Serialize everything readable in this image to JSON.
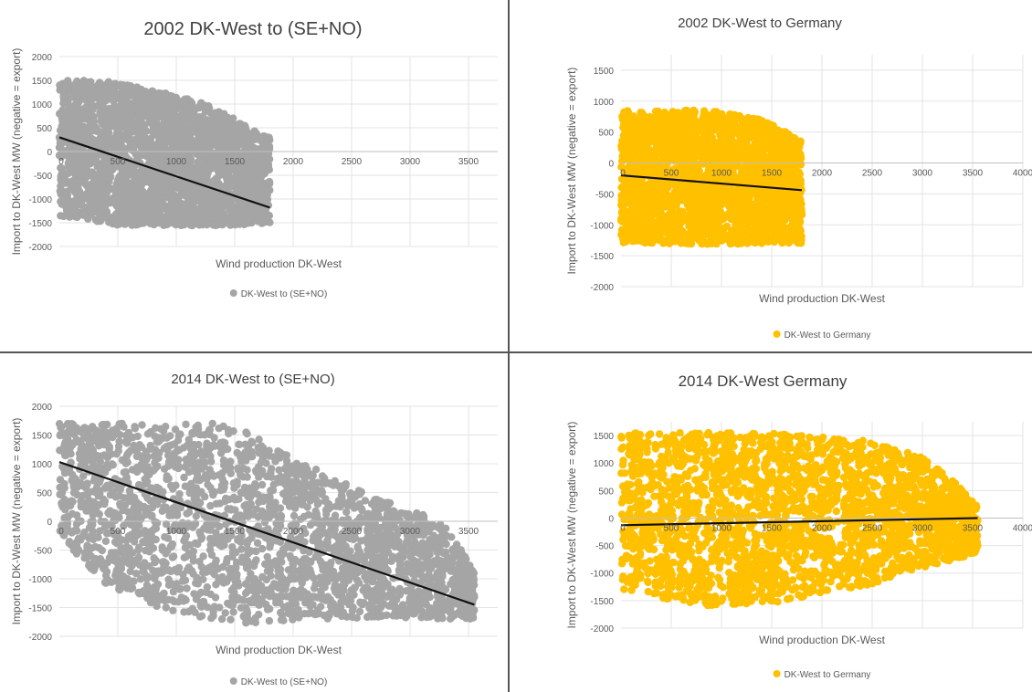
{
  "figure": {
    "divider_color": "#555555"
  },
  "chart_data": [
    {
      "type": "scatter",
      "title": "2002 DK-West to (SE+NO)",
      "xlabel": "Wind production DK-West",
      "ylabel": "Import to DK-West MW (negative = export)",
      "xlim": [
        0,
        3750
      ],
      "ylim": [
        -2000,
        2000
      ],
      "x_ticks": [
        0,
        500,
        1000,
        1500,
        2000,
        2500,
        3000,
        3500
      ],
      "y_ticks": [
        -2000,
        -1500,
        -1000,
        -500,
        0,
        500,
        1000,
        1500,
        2000
      ],
      "grid": true,
      "legend_position": "bottom",
      "marker_color": "#A5A5A5",
      "series": [
        {
          "name": "DK-West to (SE+NO)",
          "cloud": {
            "x_range": [
              0,
              1800
            ],
            "y_max_at_x": [
              [
                0,
                1520
              ],
              [
                400,
                1480
              ],
              [
                800,
                1300
              ],
              [
                1200,
                1050
              ],
              [
                1500,
                700
              ],
              [
                1650,
                450
              ],
              [
                1800,
                300
              ]
            ],
            "y_min_at_x": [
              [
                0,
                -1400
              ],
              [
                500,
                -1550
              ],
              [
                1000,
                -1560
              ],
              [
                1500,
                -1560
              ],
              [
                1800,
                -1500
              ]
            ]
          }
        }
      ],
      "trendline": {
        "x": [
          0,
          1800
        ],
        "y": [
          300,
          -1180
        ],
        "color": "#111111"
      }
    },
    {
      "type": "scatter",
      "title": "2002 DK-West to Germany",
      "xlabel": "Wind production DK-West",
      "ylabel": "Import to DK-West MW (negative = export)",
      "xlim": [
        0,
        4000
      ],
      "ylim": [
        -2000,
        1750
      ],
      "x_ticks": [
        0,
        500,
        1000,
        1500,
        2000,
        2500,
        3000,
        3500,
        4000
      ],
      "y_ticks": [
        -2000,
        -1500,
        -1000,
        -500,
        0,
        500,
        1000,
        1500
      ],
      "grid": true,
      "legend_position": "bottom",
      "marker_color": "#FFC000",
      "series": [
        {
          "name": "DK-West to Germany",
          "cloud": {
            "x_range": [
              0,
              1800
            ],
            "y_max_at_x": [
              [
                0,
                850
              ],
              [
                900,
                850
              ],
              [
                1400,
                700
              ],
              [
                1650,
                500
              ],
              [
                1800,
                350
              ]
            ],
            "y_min_at_x": [
              [
                0,
                -1300
              ],
              [
                800,
                -1320
              ],
              [
                1400,
                -1300
              ],
              [
                1800,
                -1300
              ]
            ]
          }
        }
      ],
      "trendline": {
        "x": [
          0,
          1800
        ],
        "y": [
          -200,
          -440
        ],
        "color": "#111111"
      }
    },
    {
      "type": "scatter",
      "title": "2014 DK-West to (SE+NO)",
      "xlabel": "Wind production DK-West",
      "ylabel": "Import to DK-West MW (negative = export)",
      "xlim": [
        0,
        3750
      ],
      "ylim": [
        -2000,
        2000
      ],
      "x_ticks": [
        0,
        500,
        1000,
        1500,
        2000,
        2500,
        3000,
        3500
      ],
      "y_ticks": [
        -2000,
        -1500,
        -1000,
        -500,
        0,
        500,
        1000,
        1500,
        2000
      ],
      "grid": true,
      "legend_position": "bottom",
      "marker_color": "#A5A5A5",
      "series": [
        {
          "name": "DK-West to (SE+NO)",
          "cloud": {
            "x_range": [
              0,
              3550
            ],
            "y_max_at_x": [
              [
                0,
                1700
              ],
              [
                1400,
                1700
              ],
              [
                1600,
                1550
              ],
              [
                2000,
                1100
              ],
              [
                2500,
                600
              ],
              [
                3000,
                200
              ],
              [
                3300,
                0
              ],
              [
                3550,
                -900
              ]
            ],
            "y_min_at_x": [
              [
                0,
                -300
              ],
              [
                400,
                -1100
              ],
              [
                900,
                -1550
              ],
              [
                1500,
                -1800
              ],
              [
                2100,
                -1700
              ],
              [
                3000,
                -1700
              ],
              [
                3550,
                -1700
              ]
            ]
          }
        }
      ],
      "trendline": {
        "x": [
          0,
          3550
        ],
        "y": [
          1030,
          -1450
        ],
        "color": "#111111"
      }
    },
    {
      "type": "scatter",
      "title": "2014 DK-West Germany",
      "xlabel": "Wind production DK-West",
      "ylabel": "Import to DK-West MW (negative = export)",
      "xlim": [
        0,
        4000
      ],
      "ylim": [
        -2000,
        1750
      ],
      "x_ticks": [
        0,
        500,
        1000,
        1500,
        2000,
        2500,
        3000,
        3500,
        4000
      ],
      "y_ticks": [
        -2000,
        -1500,
        -1000,
        -500,
        0,
        500,
        1000,
        1500
      ],
      "grid": true,
      "legend_position": "bottom",
      "marker_color": "#FFC000",
      "series": [
        {
          "name": "DK-West to Germany",
          "cloud": {
            "x_range": [
              0,
              3550
            ],
            "y_max_at_x": [
              [
                0,
                1550
              ],
              [
                1500,
                1550
              ],
              [
                2500,
                1400
              ],
              [
                3000,
                1100
              ],
              [
                3300,
                700
              ],
              [
                3550,
                200
              ]
            ],
            "y_min_at_x": [
              [
                0,
                -1300
              ],
              [
                800,
                -1600
              ],
              [
                1500,
                -1550
              ],
              [
                2500,
                -1200
              ],
              [
                3000,
                -900
              ],
              [
                3550,
                -650
              ]
            ]
          }
        }
      ],
      "trendline": {
        "x": [
          0,
          3550
        ],
        "y": [
          -130,
          0
        ],
        "color": "#111111"
      }
    }
  ]
}
